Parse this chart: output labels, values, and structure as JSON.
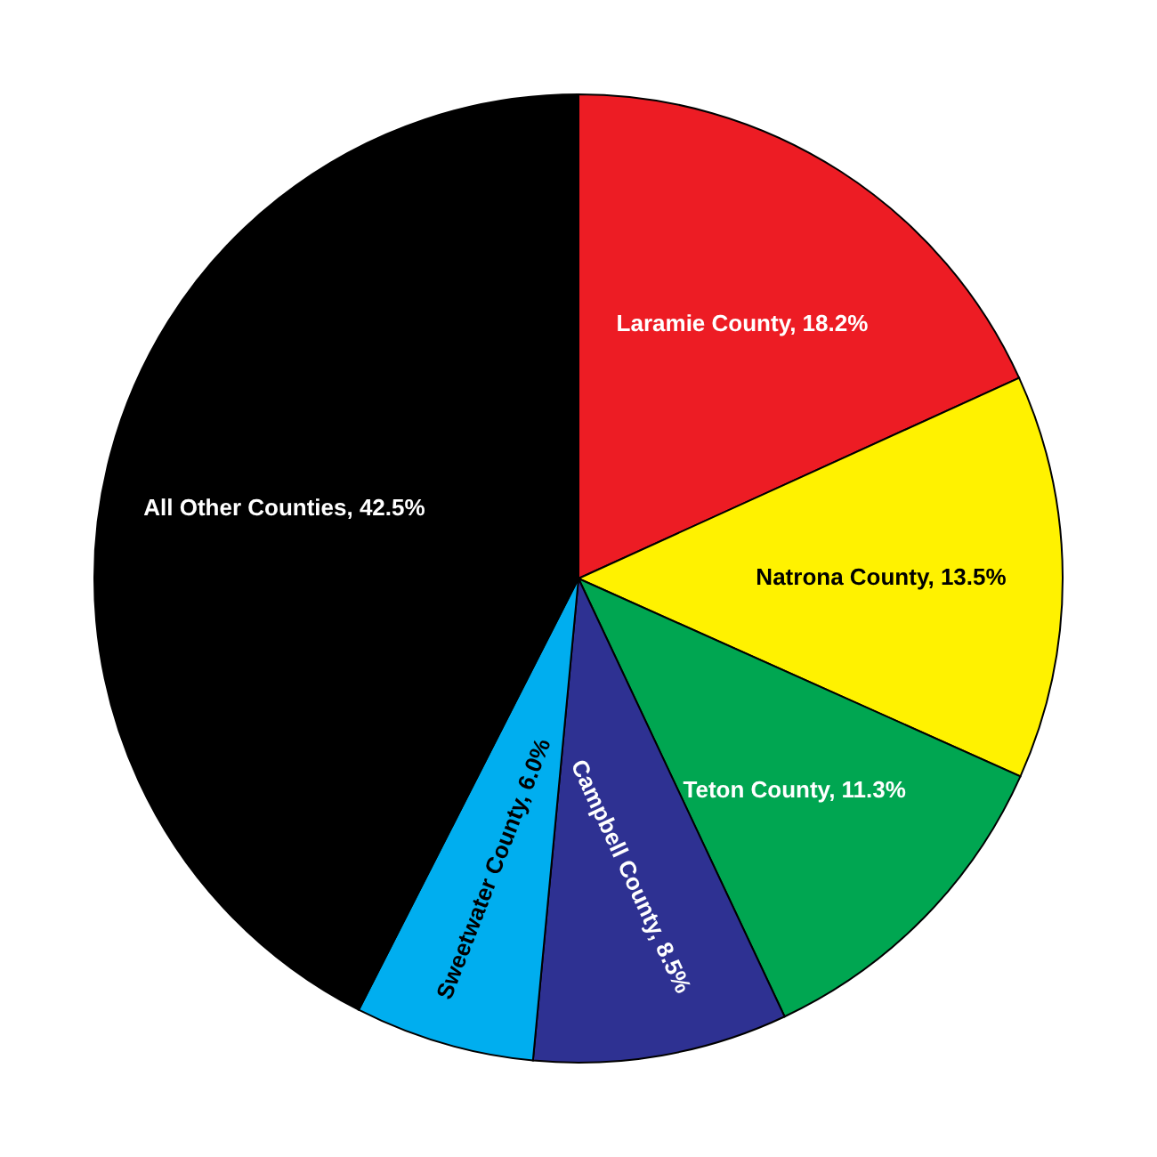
{
  "chart_data": {
    "type": "pie",
    "categories": [
      "Laramie County",
      "Natrona County",
      "Teton County",
      "Campbell County",
      "Sweetwater County",
      "All Other Counties"
    ],
    "values": [
      18.2,
      13.5,
      11.3,
      8.5,
      6.0,
      42.5
    ],
    "colors": [
      "#ed1c24",
      "#fff200",
      "#00a651",
      "#2e3192",
      "#00aeef",
      "#000000"
    ],
    "value_labels": [
      "18.2%",
      "13.5%",
      "11.3%",
      "8.5%",
      "6.0%",
      "42.5%"
    ]
  }
}
